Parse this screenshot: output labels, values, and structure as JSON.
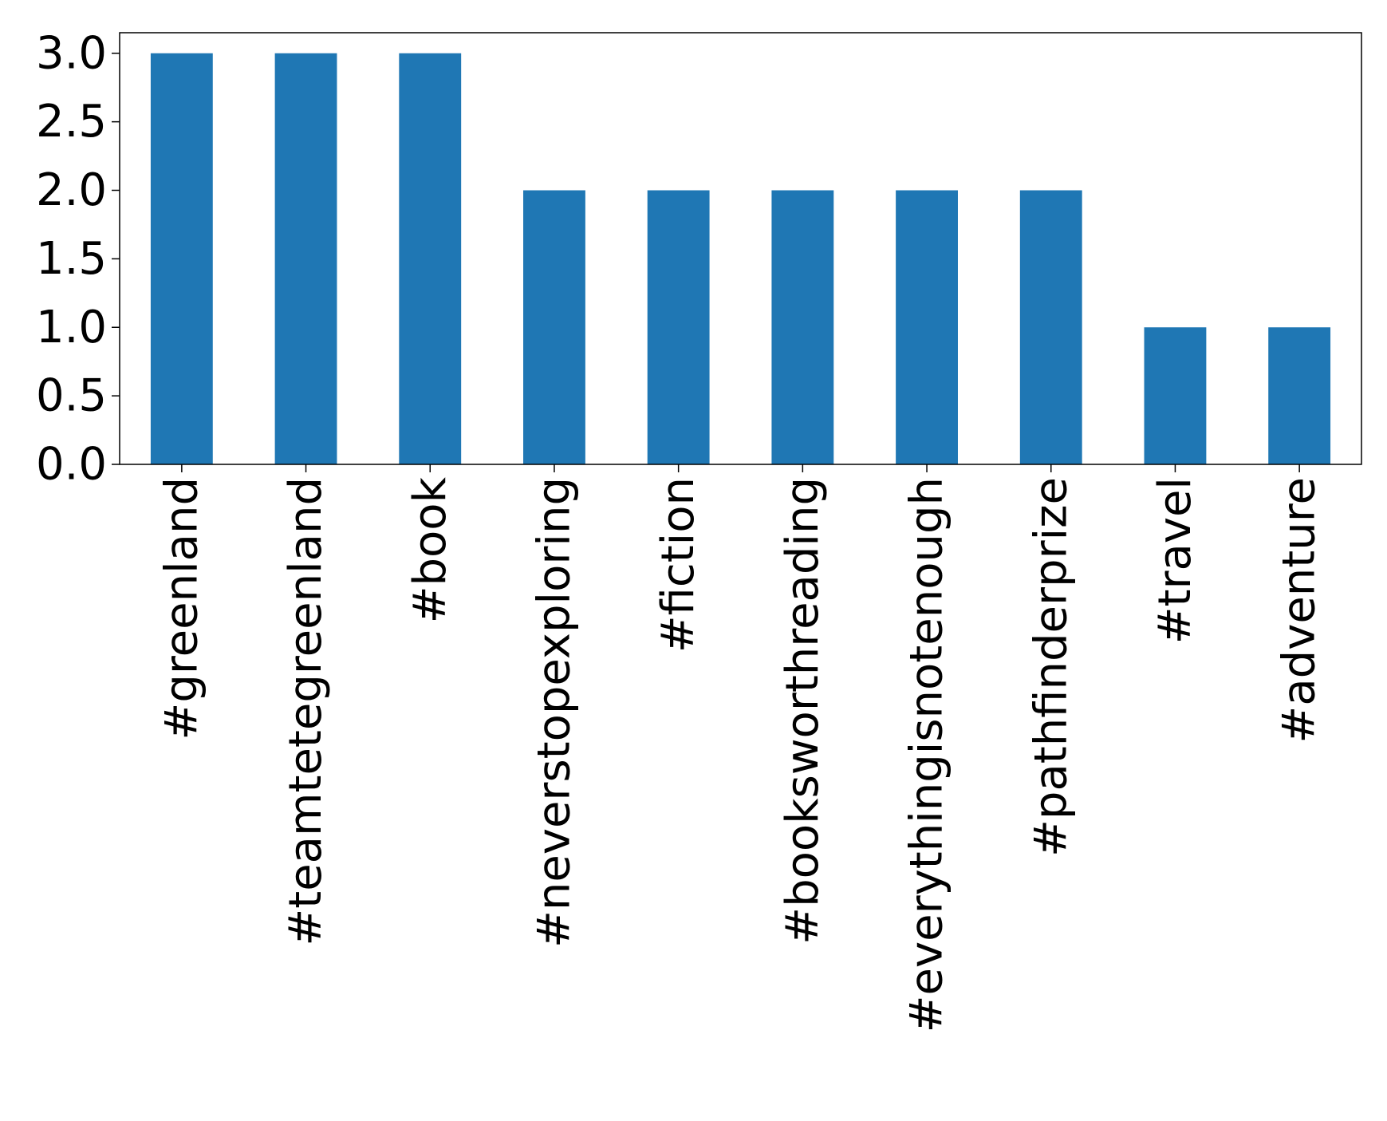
{
  "chart_data": {
    "type": "bar",
    "title": "",
    "xlabel": "",
    "ylabel": "",
    "categories": [
      "#greenland",
      "#teamtetegreenland",
      "#book",
      "#neverstopexploring",
      "#fiction",
      "#booksworthreading",
      "#everythingisnotenough",
      "#pathfinderprize",
      "#travel",
      "#adventure"
    ],
    "values": [
      3,
      3,
      3,
      2,
      2,
      2,
      2,
      2,
      1,
      1
    ],
    "ylim": [
      0,
      3.15
    ],
    "yticks": [
      0.0,
      0.5,
      1.0,
      1.5,
      2.0,
      2.5,
      3.0
    ],
    "ytick_labels": [
      "0.0",
      "0.5",
      "1.0",
      "1.5",
      "2.0",
      "2.5",
      "3.0"
    ],
    "bar_color": "#1f77b4",
    "grid": false,
    "legend": "none"
  }
}
